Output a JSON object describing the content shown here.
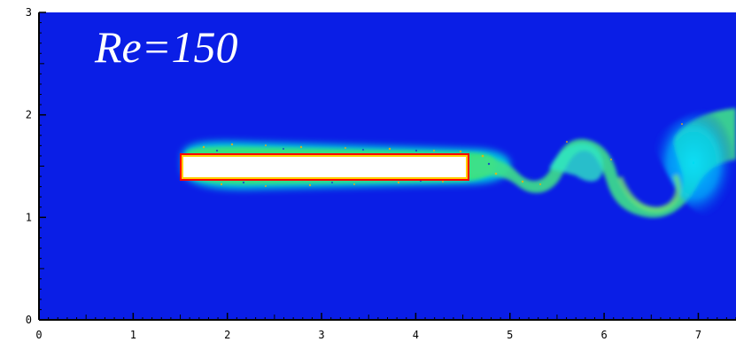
{
  "title": "Re=150",
  "axes": {
    "x_ticks": [
      "0",
      "1",
      "2",
      "3",
      "4",
      "5",
      "6",
      "7"
    ],
    "y_ticks": [
      "0",
      "1",
      "2",
      "3"
    ],
    "xlim": [
      0,
      7.4
    ],
    "ylim": [
      0,
      3
    ]
  },
  "field": {
    "background_color": "#0a1ee6",
    "plate": {
      "x_start": 1.5,
      "x_end": 4.55,
      "y_bottom": 1.37,
      "y_top": 1.61,
      "fill_color": "#ffffff",
      "edge_color": "#ff0000"
    },
    "colormap": [
      "#0a1ee6",
      "#00e6e6",
      "#33ee66",
      "#ffff00",
      "#ff0000"
    ]
  }
}
